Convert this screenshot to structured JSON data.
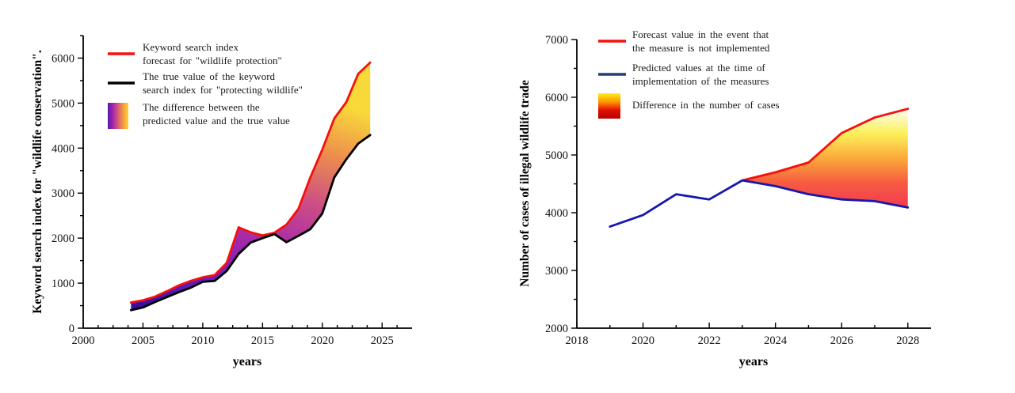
{
  "page": {
    "background": "#ffffff"
  },
  "chart_data": [
    {
      "type": "area",
      "title": "",
      "xlabel": "years",
      "ylabel": "Keyword search index for \"wildlife conservation\".",
      "xlim": [
        2000,
        2027.5
      ],
      "ylim": [
        0,
        6500
      ],
      "xticks": [
        2000,
        2005,
        2010,
        2015,
        2020,
        2025
      ],
      "yticks": [
        0,
        1000,
        2000,
        3000,
        4000,
        5000,
        6000
      ],
      "x_minor_step": 1.25,
      "y_minor_step": 500,
      "grid": false,
      "legend_position": "top-left-inside",
      "x": [
        2004,
        2005,
        2006,
        2007,
        2008,
        2009,
        2010,
        2011,
        2012,
        2013,
        2014,
        2015,
        2016,
        2017,
        2018,
        2019,
        2020,
        2021,
        2022,
        2023,
        2024
      ],
      "series": [
        {
          "name": "Keyword search index forecast for \"wildlife protection\"",
          "color": "#f80f0b",
          "width": 2.8,
          "values": [
            570,
            620,
            700,
            820,
            950,
            1050,
            1130,
            1180,
            1450,
            2240,
            2130,
            2060,
            2120,
            2300,
            2650,
            3350,
            3970,
            4660,
            5020,
            5650,
            5900
          ]
        },
        {
          "name": "The true value of the keyword search index for \"protecting wildlife\"",
          "color": "#000000",
          "width": 2.8,
          "values": [
            400,
            460,
            580,
            690,
            800,
            900,
            1030,
            1050,
            1270,
            1650,
            1900,
            2000,
            2090,
            1910,
            2050,
            2200,
            2550,
            3350,
            3750,
            4100,
            4290
          ]
        }
      ],
      "fill_between": {
        "upper": 0,
        "lower": 1,
        "label": "The difference between the predicted value and the true value",
        "gradient": [
          "#350b9b",
          "#6b1cc3",
          "#a62aa8",
          "#cc4d85",
          "#ec8c4e",
          "#f9d839"
        ],
        "direction": "diagonal-up"
      },
      "legend": {
        "items": [
          {
            "swatch": "line",
            "color": "#f80f0b",
            "lines": [
              "Keyword search index",
              "forecast for \"wildlife protection\""
            ]
          },
          {
            "swatch": "line",
            "color": "#000000",
            "lines": [
              "The true value of the keyword",
              "search index for \"protecting wildlife\""
            ]
          },
          {
            "swatch": "gradient",
            "gradient": [
              "#5c15ae",
              "#a326ab",
              "#d65c74",
              "#f29b40",
              "#fbd62e"
            ],
            "gradient_direction": "horizontal",
            "lines": [
              "The difference between the",
              "predicted value and the true value"
            ]
          }
        ]
      }
    },
    {
      "type": "area",
      "title": "",
      "xlabel": "years",
      "ylabel": "Number of cases of illegal wildlife trade",
      "xlim": [
        2018,
        2028.7
      ],
      "ylim": [
        2000,
        7000
      ],
      "xticks": [
        2018,
        2020,
        2022,
        2024,
        2026,
        2028
      ],
      "yticks": [
        2000,
        3000,
        4000,
        5000,
        6000,
        7000
      ],
      "x_minor_step": 1,
      "y_minor_step": 500,
      "grid": false,
      "legend_position": "top-left-inside",
      "x": [
        2019,
        2020,
        2021,
        2022,
        2023,
        2024,
        2025,
        2026,
        2027,
        2028
      ],
      "series": [
        {
          "name": "Forecast value in the event that the measure is not implemented",
          "color": "#f80f0b",
          "width": 2.8,
          "values": [
            null,
            null,
            null,
            null,
            4560,
            4700,
            4870,
            5380,
            5650,
            5800
          ]
        },
        {
          "name": "Predicted values at the time of implementation of the measures",
          "color": "#1717ad",
          "width": 2.8,
          "values": [
            3760,
            3960,
            4320,
            4230,
            4560,
            4460,
            4320,
            4230,
            4200,
            4090
          ]
        }
      ],
      "fill_between": {
        "upper": 0,
        "lower": 1,
        "label": "Difference in the number of cases",
        "gradient": [
          "#fffdf5",
          "#fcf05a",
          "#fba93a",
          "#f75b41",
          "#f23a52"
        ],
        "direction": "vertical-down"
      },
      "legend": {
        "items": [
          {
            "swatch": "line",
            "color": "#f80f0b",
            "lines": [
              "Forecast value in the event that",
              "the measure is not implemented"
            ]
          },
          {
            "swatch": "line",
            "color": "#24406e",
            "lines": [
              "Predicted values at the time of",
              "implementation of the measures"
            ]
          },
          {
            "swatch": "gradient",
            "gradient": [
              "#ffee15",
              "#fe9900",
              "#e30e00",
              "#b50300"
            ],
            "gradient_direction": "vertical",
            "lines": [
              "Difference in the number of cases"
            ]
          }
        ]
      }
    }
  ]
}
